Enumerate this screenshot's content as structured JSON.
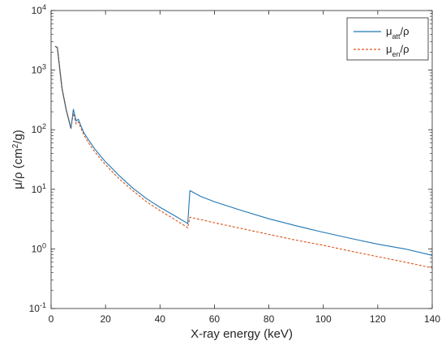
{
  "chart_data": {
    "type": "line",
    "xlabel": "X-ray energy (keV)",
    "ylabel_parts": [
      "μ/ρ (cm",
      "2",
      "/g)"
    ],
    "xlim": [
      0,
      140
    ],
    "ylim": [
      0.1,
      10000
    ],
    "yscale": "log",
    "x_ticks": [
      0,
      20,
      40,
      60,
      80,
      100,
      120,
      140
    ],
    "y_tick_labels": [
      {
        "base": "10",
        "exp": "-1"
      },
      {
        "base": "10",
        "exp": "0"
      },
      {
        "base": "10",
        "exp": "1"
      },
      {
        "base": "10",
        "exp": "2"
      },
      {
        "base": "10",
        "exp": "3"
      },
      {
        "base": "10",
        "exp": "4"
      }
    ],
    "grid": false,
    "legend_position": "top-right",
    "series": [
      {
        "name_parts": [
          "μ",
          "att",
          "/ρ"
        ],
        "color": "#1f77b4",
        "style": "solid",
        "x": [
          1.5,
          2.3,
          4,
          5.5,
          7.3,
          8.2,
          9.2,
          10,
          11,
          12,
          14,
          16,
          18,
          20,
          25,
          30,
          35,
          40,
          45,
          50,
          50.2,
          51,
          55,
          60,
          70,
          80,
          90,
          100,
          110,
          120,
          130,
          140
        ],
        "y": [
          2500,
          2400,
          500,
          220,
          105,
          220,
          140,
          150,
          115,
          90,
          65,
          48,
          37,
          29,
          17,
          10.5,
          7,
          5,
          3.7,
          2.7,
          2.65,
          9.5,
          7.6,
          6.2,
          4.4,
          3.2,
          2.45,
          1.9,
          1.5,
          1.2,
          1.0,
          0.78
        ]
      },
      {
        "name_parts": [
          "μ",
          "en",
          "/ρ"
        ],
        "color": "#d95319",
        "style": "dashed",
        "x": [
          1.5,
          2.3,
          4,
          5.5,
          7.3,
          8.2,
          9.2,
          10,
          11,
          12,
          14,
          16,
          18,
          20,
          25,
          30,
          35,
          40,
          45,
          50,
          50.2,
          51,
          55,
          60,
          70,
          80,
          90,
          100,
          110,
          120,
          130,
          140
        ],
        "y": [
          2500,
          2400,
          500,
          220,
          105,
          190,
          125,
          135,
          105,
          82,
          58,
          43,
          33,
          26,
          15,
          9.5,
          6.2,
          4.4,
          3.2,
          2.3,
          2.25,
          3.4,
          3.1,
          2.75,
          2.2,
          1.75,
          1.4,
          1.15,
          0.92,
          0.74,
          0.6,
          0.48
        ]
      }
    ],
    "early_segment_color": "#555555"
  }
}
